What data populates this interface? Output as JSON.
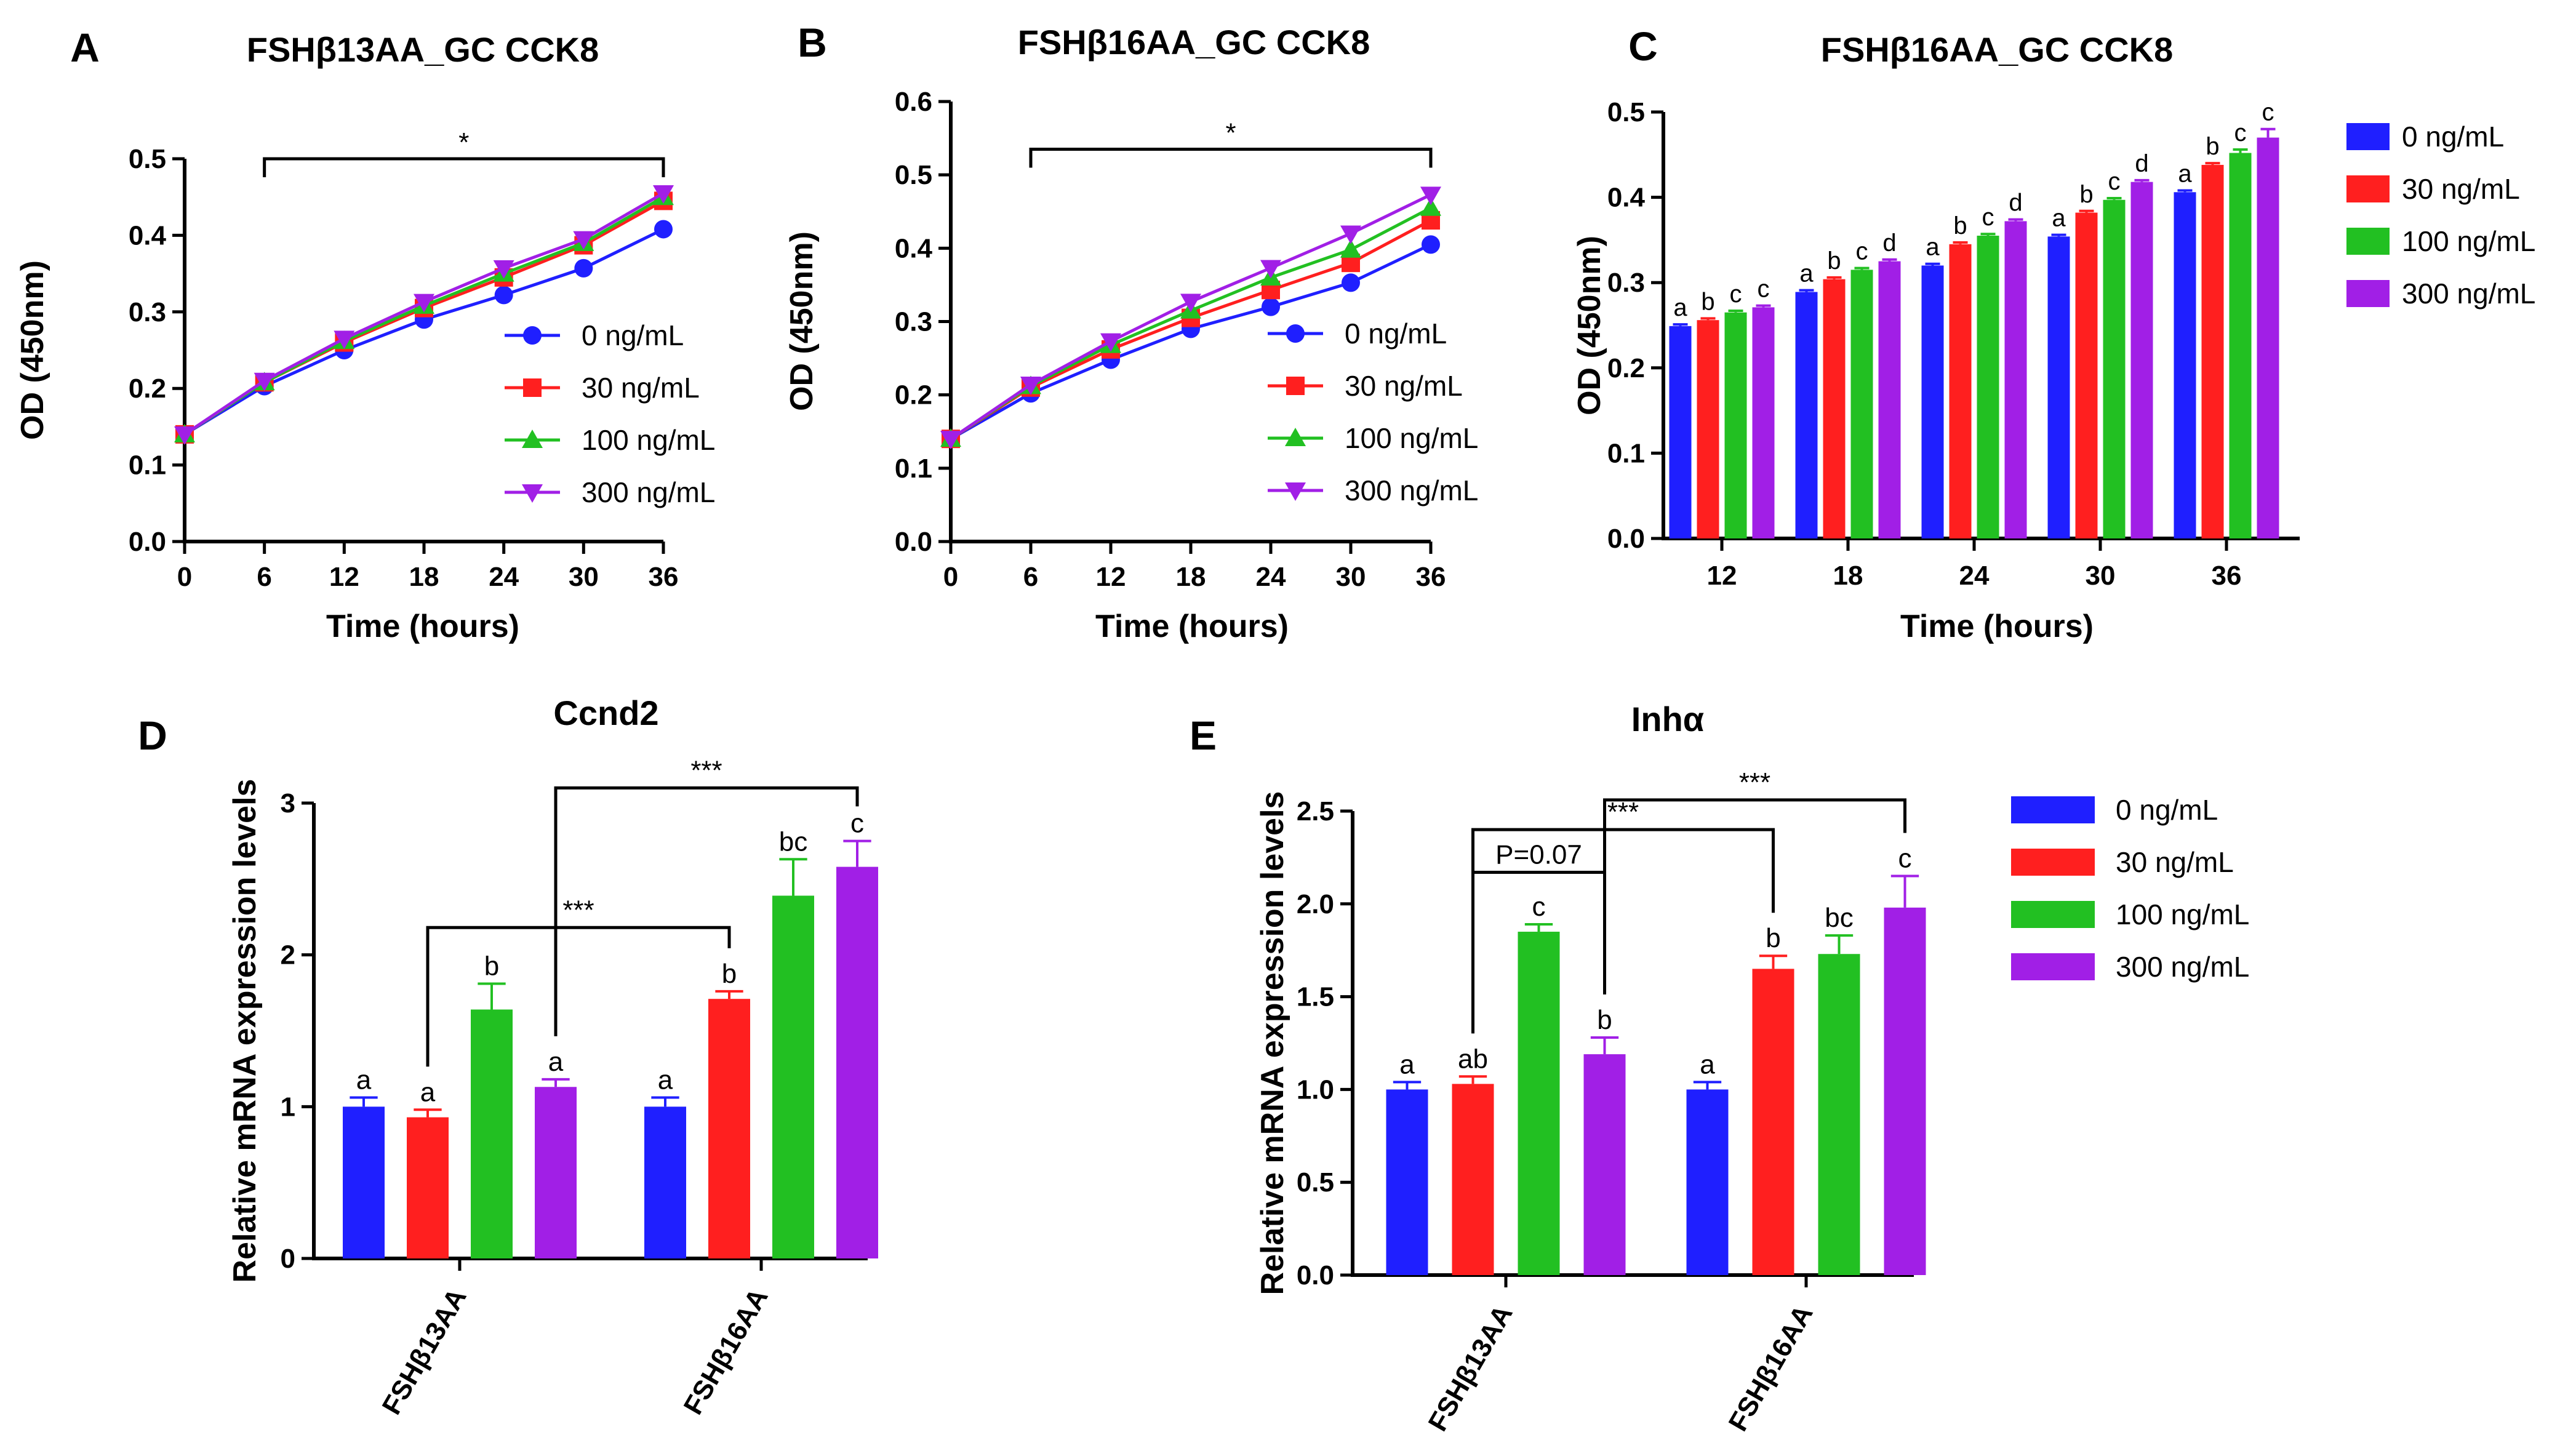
{
  "colors": {
    "0 ng/mL": "#1f1fff",
    "30 ng/mL": "#ff1f1f",
    "100 ng/mL": "#22c022",
    "300 ng/mL": "#a11fe6"
  },
  "legend_labels": [
    "0 ng/mL",
    "30 ng/mL",
    "100 ng/mL",
    "300 ng/mL"
  ],
  "chart_data": [
    {
      "id": "A",
      "letter": "A",
      "type": "line",
      "title": "FSHβ13AA_GC CCK8",
      "xlabel": "Time (hours)",
      "ylabel": "OD (450nm)",
      "x": [
        0,
        6,
        12,
        18,
        24,
        30,
        36
      ],
      "ylim": [
        0,
        0.5
      ],
      "yticks": [
        "0.0",
        "0.1",
        "0.2",
        "0.3",
        "0.4",
        "0.5"
      ],
      "series": [
        {
          "name": "0 ng/mL",
          "marker": "circle",
          "values": [
            0.14,
            0.203,
            0.25,
            0.29,
            0.322,
            0.357,
            0.408
          ]
        },
        {
          "name": "30 ng/mL",
          "marker": "square",
          "values": [
            0.14,
            0.208,
            0.26,
            0.305,
            0.345,
            0.387,
            0.445
          ]
        },
        {
          "name": "100 ng/mL",
          "marker": "triangle",
          "values": [
            0.14,
            0.208,
            0.262,
            0.308,
            0.35,
            0.39,
            0.45
          ]
        },
        {
          "name": "300 ng/mL",
          "marker": "triangle-down",
          "values": [
            0.14,
            0.21,
            0.265,
            0.313,
            0.357,
            0.395,
            0.455
          ]
        }
      ],
      "bracket": {
        "x1": 6,
        "x2": 36,
        "y": 0.5,
        "label": "*"
      }
    },
    {
      "id": "B",
      "letter": "B",
      "type": "line",
      "title": "FSHβ16AA_GC CCK8",
      "xlabel": "Time (hours)",
      "ylabel": "OD (450nm)",
      "x": [
        0,
        6,
        12,
        18,
        24,
        30,
        36
      ],
      "ylim": [
        0,
        0.6
      ],
      "yticks": [
        "0.0",
        "0.1",
        "0.2",
        "0.3",
        "0.4",
        "0.5",
        "0.6"
      ],
      "series": [
        {
          "name": "0 ng/mL",
          "marker": "circle",
          "values": [
            0.14,
            0.202,
            0.248,
            0.29,
            0.32,
            0.353,
            0.405
          ]
        },
        {
          "name": "30 ng/mL",
          "marker": "square",
          "values": [
            0.14,
            0.21,
            0.262,
            0.305,
            0.343,
            0.38,
            0.438
          ]
        },
        {
          "name": "100 ng/mL",
          "marker": "triangle",
          "values": [
            0.14,
            0.212,
            0.268,
            0.315,
            0.36,
            0.398,
            0.455
          ]
        },
        {
          "name": "300 ng/mL",
          "marker": "triangle-down",
          "values": [
            0.14,
            0.214,
            0.273,
            0.327,
            0.373,
            0.42,
            0.473
          ]
        }
      ],
      "bracket": {
        "x1": 6,
        "x2": 36,
        "y": 0.535,
        "label": "*"
      }
    },
    {
      "id": "C",
      "letter": "C",
      "type": "bar",
      "title": "FSHβ16AA_GC CCK8",
      "xlabel": "Time (hours)",
      "ylabel": "OD (450nm)",
      "categories": [
        "12",
        "18",
        "24",
        "30",
        "36"
      ],
      "ylim": [
        0,
        0.5
      ],
      "yticks": [
        "0.0",
        "0.1",
        "0.2",
        "0.3",
        "0.4",
        "0.5"
      ],
      "series": [
        {
          "name": "0 ng/mL",
          "values": [
            0.249,
            0.289,
            0.32,
            0.354,
            0.406
          ],
          "errors": [
            0.002,
            0.002,
            0.002,
            0.002,
            0.002
          ],
          "letters": [
            "a",
            "a",
            "a",
            "a",
            "a"
          ]
        },
        {
          "name": "30 ng/mL",
          "values": [
            0.256,
            0.304,
            0.345,
            0.382,
            0.438
          ],
          "errors": [
            0.002,
            0.002,
            0.002,
            0.002,
            0.002
          ],
          "letters": [
            "b",
            "b",
            "b",
            "b",
            "b"
          ]
        },
        {
          "name": "100 ng/mL",
          "values": [
            0.265,
            0.315,
            0.355,
            0.397,
            0.452
          ],
          "errors": [
            0.002,
            0.002,
            0.002,
            0.002,
            0.004
          ],
          "letters": [
            "c",
            "c",
            "c",
            "c",
            "c"
          ]
        },
        {
          "name": "300 ng/mL",
          "values": [
            0.271,
            0.325,
            0.372,
            0.418,
            0.47
          ],
          "errors": [
            0.002,
            0.002,
            0.002,
            0.002,
            0.01
          ],
          "letters": [
            "c",
            "d",
            "d",
            "d",
            "c"
          ]
        }
      ]
    },
    {
      "id": "D",
      "letter": "D",
      "type": "bar",
      "title": "Ccnd2",
      "xlabel": "",
      "ylabel": "Relative mRNA expression levels",
      "categories": [
        "FSHβ13AA",
        "FSHβ16AA"
      ],
      "ylim": [
        0,
        3
      ],
      "yticks": [
        "0",
        "1",
        "2",
        "3"
      ],
      "series": [
        {
          "name": "0 ng/mL",
          "values": [
            1.0,
            1.0
          ],
          "errors": [
            0.06,
            0.06
          ],
          "letters": [
            "a",
            "a"
          ]
        },
        {
          "name": "30 ng/mL",
          "values": [
            0.93,
            1.71
          ],
          "errors": [
            0.05,
            0.05
          ],
          "letters": [
            "a",
            "b"
          ]
        },
        {
          "name": "100 ng/mL",
          "values": [
            1.64,
            2.39
          ],
          "errors": [
            0.17,
            0.24
          ],
          "letters": [
            "b",
            "bc"
          ]
        },
        {
          "name": "300 ng/mL",
          "values": [
            1.13,
            2.58
          ],
          "errors": [
            0.05,
            0.17
          ],
          "letters": [
            "a",
            "c"
          ]
        }
      ],
      "brackets": [
        {
          "label": "***",
          "from": [
            0,
            1
          ],
          "to": [
            1,
            1
          ],
          "y": 2.18
        },
        {
          "label": "***",
          "from": [
            0,
            3
          ],
          "to": [
            1,
            3
          ],
          "y": 3.1
        }
      ]
    },
    {
      "id": "E",
      "letter": "E",
      "type": "bar",
      "title": "Inhα",
      "xlabel": "",
      "ylabel": "Relative mRNA expression levels",
      "categories": [
        "FSHβ13AA",
        "FSHβ16AA"
      ],
      "ylim": [
        0,
        2.5
      ],
      "yticks": [
        "0.0",
        "0.5",
        "1.0",
        "1.5",
        "2.0",
        "2.5"
      ],
      "series": [
        {
          "name": "0 ng/mL",
          "values": [
            1.0,
            1.0
          ],
          "errors": [
            0.04,
            0.04
          ],
          "letters": [
            "a",
            "a"
          ]
        },
        {
          "name": "30 ng/mL",
          "values": [
            1.03,
            1.65
          ],
          "errors": [
            0.04,
            0.07
          ],
          "letters": [
            "ab",
            "b"
          ]
        },
        {
          "name": "100 ng/mL",
          "values": [
            1.85,
            1.73
          ],
          "errors": [
            0.04,
            0.1
          ],
          "letters": [
            "c",
            "bc"
          ]
        },
        {
          "name": "300 ng/mL",
          "values": [
            1.19,
            1.98
          ],
          "errors": [
            0.09,
            0.17
          ],
          "letters": [
            "b",
            "c"
          ]
        }
      ],
      "brackets": [
        {
          "label": "P=0.07",
          "from": [
            0,
            1
          ],
          "to": [
            0,
            3
          ],
          "y": 2.17
        },
        {
          "label": "***",
          "from": [
            0,
            1
          ],
          "to": [
            1,
            1
          ],
          "y": 2.4
        },
        {
          "label": "***",
          "from": [
            0,
            3
          ],
          "to": [
            1,
            3
          ],
          "y": 2.56
        }
      ]
    }
  ]
}
